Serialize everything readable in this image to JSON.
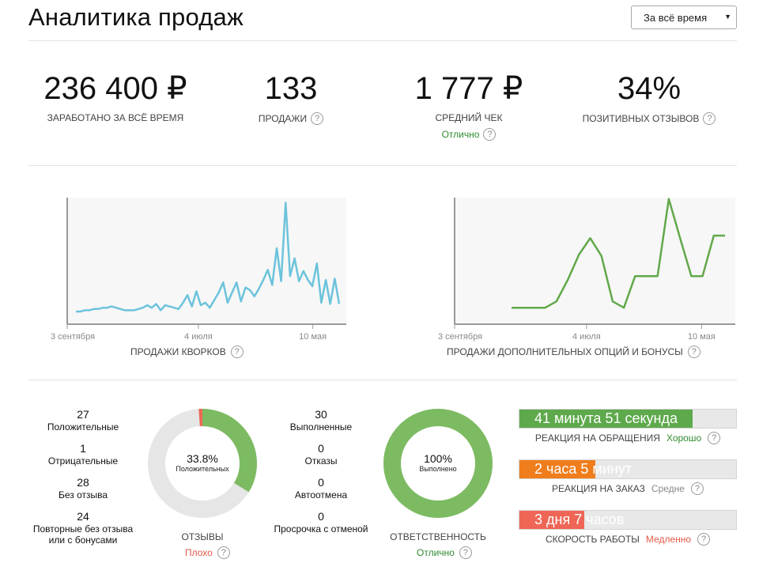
{
  "header": {
    "title": "Аналитика продаж",
    "period_select": "За всё время"
  },
  "stats": [
    {
      "value": "236 400 ₽",
      "label": "Заработано за всё время",
      "help": false
    },
    {
      "value": "133",
      "label": "Продажи",
      "help": true
    },
    {
      "value": "1 777 ₽",
      "label": "Средний чек",
      "help": false,
      "note": "Отлично"
    },
    {
      "value": "34%",
      "label": "Позитивных отзывов",
      "help": true
    }
  ],
  "help_glyph": "?",
  "chart_data": [
    {
      "type": "line",
      "title": "Продажи кворков",
      "xlabel": "",
      "ylabel": "",
      "x_ticks": [
        "3 сентября",
        "4 июля",
        "10 мая"
      ],
      "color": "#6cc3dc",
      "series": [
        {
          "values": [
            0.1,
            0.1,
            0.11,
            0.11,
            0.12,
            0.12,
            0.13,
            0.13,
            0.14,
            0.13,
            0.12,
            0.11,
            0.11,
            0.11,
            0.12,
            0.13,
            0.15,
            0.13,
            0.16,
            0.11,
            0.15,
            0.14,
            0.13,
            0.12,
            0.17,
            0.23,
            0.14,
            0.26,
            0.15,
            0.17,
            0.13,
            0.19,
            0.25,
            0.33,
            0.17,
            0.25,
            0.33,
            0.18,
            0.29,
            0.27,
            0.22,
            0.28,
            0.35,
            0.43,
            0.31,
            0.6,
            0.34,
            0.96,
            0.38,
            0.52,
            0.34,
            0.42,
            0.35,
            0.3,
            0.48,
            0.17,
            0.35,
            0.16,
            0.36,
            0.16
          ]
        }
      ]
    },
    {
      "type": "line",
      "title": "Продажи дополнительных опций и бонусы",
      "xlabel": "",
      "ylabel": "",
      "x_ticks": [
        "3 сентября",
        "4 июля",
        "10 мая"
      ],
      "color": "#61a84a",
      "series": [
        {
          "values": [
            0.13,
            0.13,
            0.13,
            0.13,
            0.18,
            0.35,
            0.55,
            0.68,
            0.54,
            0.18,
            0.13,
            0.38,
            0.38,
            0.38,
            0.99,
            0.68,
            0.38,
            0.38,
            0.7,
            0.7
          ]
        }
      ]
    }
  ],
  "reviews": {
    "items": [
      {
        "num": "27",
        "label": "Положительные"
      },
      {
        "num": "1",
        "label": "Отрицательные"
      },
      {
        "num": "28",
        "label": "Без отзыва"
      },
      {
        "num": "24",
        "label": "Повторные без отзыва",
        "label2": "или с бонусами"
      }
    ],
    "donut": {
      "pct": "33.8%",
      "sub": "Положительных",
      "positive": 33.8,
      "negative": 1.2
    },
    "title": "Отзывы",
    "status": "Плохо",
    "status_color": "#e05a47"
  },
  "responsibility": {
    "items": [
      {
        "num": "30",
        "label": "Выполненные"
      },
      {
        "num": "0",
        "label": "Отказы"
      },
      {
        "num": "0",
        "label": "Автоотмена"
      },
      {
        "num": "0",
        "label": "Просрочка с отменой"
      }
    ],
    "donut": {
      "pct": "100%",
      "sub": "Выполнено",
      "value": 100
    },
    "title": "Ответственность",
    "status": "Отлично",
    "status_color": "#2e8b2e"
  },
  "metrics": [
    {
      "value": "41 минута 51 секунда",
      "label": "Реакция на обращения",
      "status": "Хорошо",
      "status_color": "#2e8b2e",
      "fill_color": "#5ea94c",
      "level": 0.8
    },
    {
      "value": "2 часа 5 минут",
      "label": "Реакция на заказ",
      "status": "Средне",
      "status_color": "#888888",
      "fill_color": "#f07d1c",
      "level": 0.35
    },
    {
      "value": "3 дня 7 часов",
      "label": "Скорость работы",
      "status": "Медленно",
      "status_color": "#e05a47",
      "fill_color": "#ef6656",
      "level": 0.3
    }
  ],
  "colors": {
    "donut_bg": "#e6e6e6",
    "donut_green": "#7dbb62",
    "donut_red": "#ef6656"
  }
}
